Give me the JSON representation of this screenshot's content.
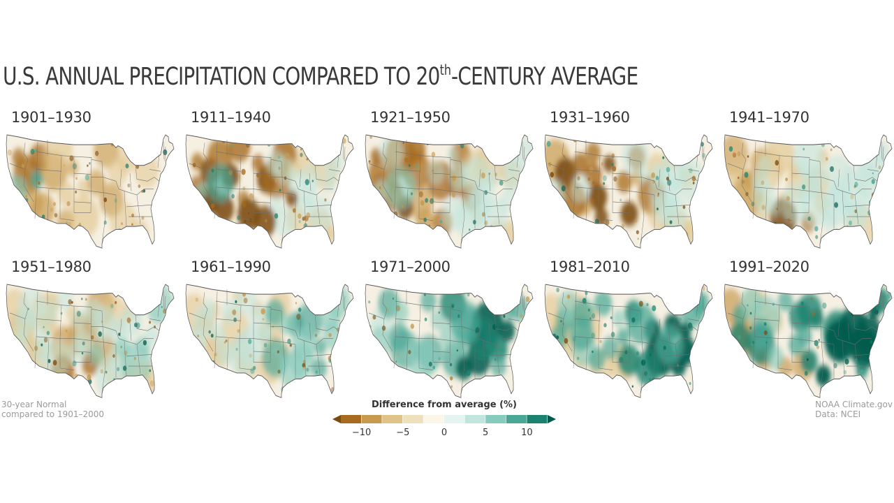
{
  "title": {
    "main": "U.S. ANNUAL PRECIPITATION COMPARED TO 20",
    "superscript": "th",
    "suffix": "-CENTURY AVERAGE"
  },
  "panels": [
    {
      "label": "1901–1930",
      "dry_west": 0.55,
      "dry_plains": 0.35,
      "dry_south": 0.45,
      "wet_east": 0.05,
      "wet_sw": 0.55
    },
    {
      "label": "1911–1940",
      "dry_west": 0.85,
      "dry_plains": 0.8,
      "dry_south": 0.25,
      "wet_east": 0.1,
      "wet_sw": 0.55
    },
    {
      "label": "1921–1950",
      "dry_west": 0.75,
      "dry_plains": 0.65,
      "dry_south": 0.2,
      "wet_east": 0.15,
      "wet_sw": 0.25
    },
    {
      "label": "1931–1960",
      "dry_west": 0.75,
      "dry_plains": 0.75,
      "dry_south": 0.6,
      "wet_east": 0.1,
      "wet_sw": 0.1
    },
    {
      "label": "1941–1970",
      "dry_west": 0.35,
      "dry_plains": 0.25,
      "dry_south": 0.85,
      "wet_east": 0.2,
      "wet_sw": 0.05
    },
    {
      "label": "1951–1980",
      "dry_west": 0.3,
      "dry_plains": 0.4,
      "dry_south": 0.85,
      "wet_east": 0.25,
      "wet_sw": 0.05
    },
    {
      "label": "1961–1990",
      "dry_west": 0.15,
      "dry_plains": 0.15,
      "dry_south": 0.2,
      "wet_east": 0.4,
      "wet_sw": 0.25
    },
    {
      "label": "1971–2000",
      "dry_west": 0.05,
      "dry_plains": 0.05,
      "dry_south": 0.05,
      "wet_east": 0.7,
      "wet_sw": 0.4
    },
    {
      "label": "1981–2010",
      "dry_west": 0.25,
      "dry_plains": 0.05,
      "dry_south": 0.25,
      "wet_east": 0.9,
      "wet_sw": 0.2
    },
    {
      "label": "1991–2020",
      "dry_west": 0.4,
      "dry_plains": 0.05,
      "dry_south": 0.55,
      "wet_east": 1.0,
      "wet_sw": 0.1
    }
  ],
  "footnote_left": {
    "line1": "30-year Normal",
    "line2": "compared to 1901–2000"
  },
  "footnote_right": {
    "line1": "NOAA Climate.gov",
    "line2": "Data: NCEI"
  },
  "legend": {
    "title": "Difference from average (%)",
    "ticks": [
      {
        "label": "−10",
        "value": -10
      },
      {
        "label": "−5",
        "value": -5
      },
      {
        "label": "0",
        "value": 0
      },
      {
        "label": "5",
        "value": 5
      },
      {
        "label": "10",
        "value": 10
      }
    ],
    "colors": [
      "#7b4a0f",
      "#a66b1e",
      "#c79a4e",
      "#dfc287",
      "#efe0bc",
      "#fbf5e8",
      "#e5f4f1",
      "#bfe5dd",
      "#86cbbd",
      "#4aa796",
      "#1a826f",
      "#015c4e"
    ]
  }
}
